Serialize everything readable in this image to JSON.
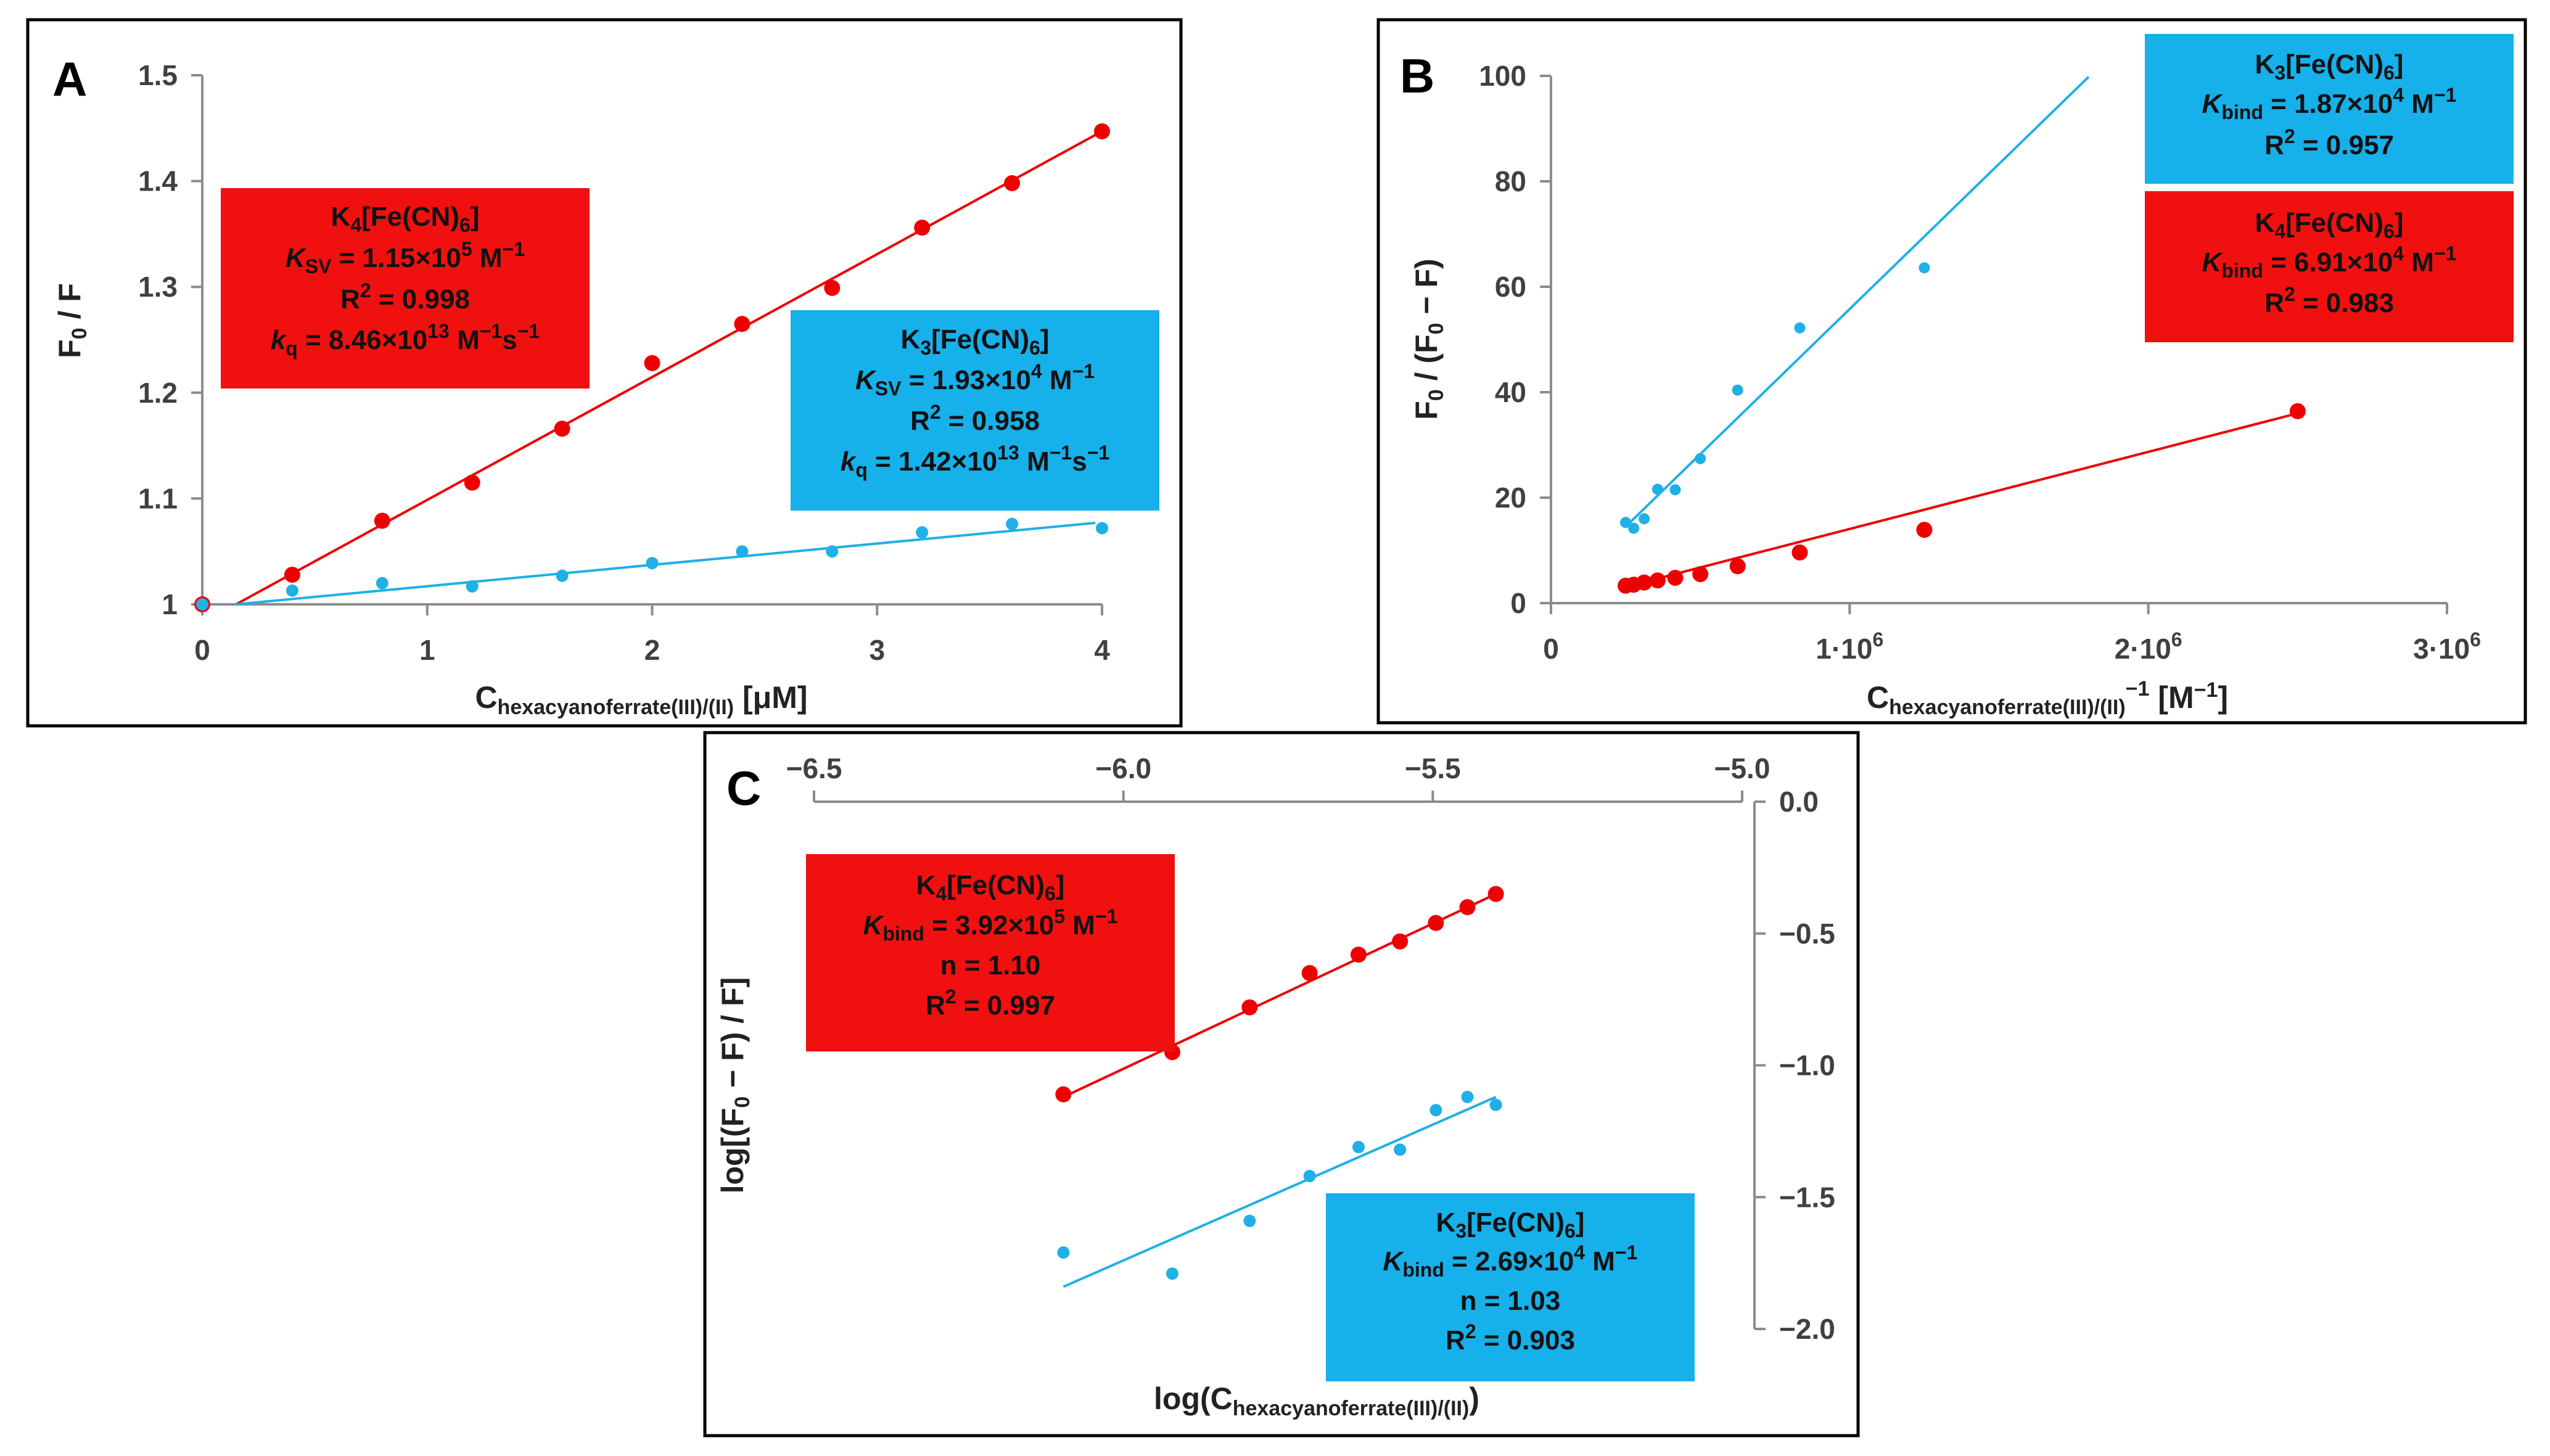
{
  "colors": {
    "red": "#ef0000",
    "blue": "#1fb0e6",
    "red_box": "#f01010",
    "blue_box": "#16b0ea"
  },
  "chart_data": [
    {
      "panel": "A",
      "type": "scatter",
      "xlabel_main": "C",
      "xlabel_sub": "hexacyanoferrate(III)/(II)",
      "xlabel_unit": " [μM]",
      "ylabel_main": "F",
      "ylabel_sub": "0",
      "ylabel_rest": " / F",
      "xlim": [
        0,
        4
      ],
      "ylim": [
        1,
        1.5
      ],
      "xticks": [
        "0",
        "1",
        "2",
        "3",
        "4"
      ],
      "yticks": [
        "1",
        "1.1",
        "1.2",
        "1.3",
        "1.4",
        "1.5"
      ],
      "series": [
        {
          "name": "K4[Fe(CN)6]",
          "color": "red",
          "x": [
            0,
            0.4,
            0.8,
            1.2,
            1.6,
            2.0,
            2.4,
            2.8,
            3.2,
            3.6,
            4.0
          ],
          "y": [
            1.0,
            1.028,
            1.079,
            1.115,
            1.166,
            1.228,
            1.265,
            1.299,
            1.356,
            1.398,
            1.447
          ],
          "fit": [
            [
              0.15,
              1.0
            ],
            [
              4.0,
              1.447
            ]
          ]
        },
        {
          "name": "K3[Fe(CN)6]",
          "color": "blue",
          "x": [
            0,
            0.4,
            0.8,
            1.2,
            1.6,
            2.0,
            2.4,
            2.8,
            3.2,
            3.6,
            4.0
          ],
          "y": [
            1.0,
            1.013,
            1.02,
            1.017,
            1.027,
            1.039,
            1.05,
            1.05,
            1.068,
            1.076,
            1.072
          ],
          "fit": [
            [
              0.15,
              1.0
            ],
            [
              3.97,
              1.077
            ]
          ]
        }
      ],
      "boxes": [
        {
          "color": "red",
          "title": "K",
          "title_sub": "4",
          "title_rest": "[Fe(CN)",
          "title_sub2": "6",
          "title_end": "]",
          "l2_k": "K",
          "l2_ksub": "SV",
          "l2_val": " = 1.15×10",
          "l2_sup": "5",
          "l2_unit": " M",
          "l2_unitsup": "−1",
          "l3_pre": "R",
          "l3_sup": "2",
          "l3_val": " = 0.998",
          "l4_k": "k",
          "l4_ksub": "q",
          "l4_val": " = 8.46×10",
          "l4_sup": "13",
          "l4_unit": " M",
          "l4_unitsup": "−1",
          "l4_unit2": "s",
          "l4_unitsup2": "−1"
        },
        {
          "color": "blue",
          "title": "K",
          "title_sub": "3",
          "title_rest": "[Fe(CN)",
          "title_sub2": "6",
          "title_end": "]",
          "l2_k": "K",
          "l2_ksub": "SV",
          "l2_val": " = 1.93×10",
          "l2_sup": "4",
          "l2_unit": " M",
          "l2_unitsup": "−1",
          "l3_pre": "R",
          "l3_sup": "2",
          "l3_val": " = 0.958",
          "l4_k": "k",
          "l4_ksub": "q",
          "l4_val": " = 1.42×10",
          "l4_sup": "13",
          "l4_unit": " M",
          "l4_unitsup": "−1",
          "l4_unit2": "s",
          "l4_unitsup2": "−1"
        }
      ]
    },
    {
      "panel": "B",
      "type": "scatter",
      "xlabel_main": "C",
      "xlabel_sub": "hexacyanoferrate(III)/(II)",
      "xlabel_sup": "−1",
      "xlabel_unit": " [M",
      "xlabel_unitsup": "−1",
      "xlabel_end": "]",
      "ylabel_main": "F",
      "ylabel_sub": "0",
      "ylabel_rest": " / (F",
      "ylabel_sub2": "0",
      "ylabel_end": " − F)",
      "xlim": [
        0,
        3000000
      ],
      "ylim": [
        0,
        100
      ],
      "xticks": [
        "0",
        "1·10",
        "2·10",
        "3·10"
      ],
      "xticks_sup": [
        "",
        "6",
        "6",
        "6"
      ],
      "yticks": [
        "0",
        "20",
        "40",
        "60",
        "80",
        "100"
      ],
      "series": [
        {
          "name": "K3[Fe(CN)6]",
          "color": "blue",
          "x": [
            250000,
            277000,
            312000,
            357000,
            416000,
            500000,
            625000,
            833000,
            1250000
          ],
          "y": [
            15.3,
            14.2,
            16.0,
            21.6,
            21.5,
            27.4,
            40.4,
            52.2,
            63.6
          ],
          "fit": [
            [
              250000,
              14.5
            ],
            [
              1800000,
              99.8
            ]
          ]
        },
        {
          "name": "K4[Fe(CN)6]",
          "color": "red",
          "x": [
            250000,
            277000,
            312000,
            357000,
            416000,
            500000,
            625000,
            833000,
            1250000,
            2500000
          ],
          "y": [
            3.3,
            3.5,
            3.9,
            4.3,
            4.8,
            5.5,
            7.0,
            9.6,
            13.9,
            36.4
          ],
          "fit": [
            [
              250000,
              3.1
            ],
            [
              2500000,
              36.0
            ]
          ]
        }
      ],
      "boxes": [
        {
          "color": "blue",
          "title": "K",
          "title_sub": "3",
          "title_rest": "[Fe(CN)",
          "title_sub2": "6",
          "title_end": "]",
          "l2_k": "K",
          "l2_ksub": "bind",
          "l2_val": " = 1.87×10",
          "l2_sup": "4",
          "l2_unit": " M",
          "l2_unitsup": "−1",
          "l3_pre": "R",
          "l3_sup": "2",
          "l3_val": " = 0.957"
        },
        {
          "color": "red",
          "title": "K",
          "title_sub": "4",
          "title_rest": "[Fe(CN)",
          "title_sub2": "6",
          "title_end": "]",
          "l2_k": "K",
          "l2_ksub": "bind",
          "l2_val": " = 6.91×10",
          "l2_sup": "4",
          "l2_unit": " M",
          "l2_unitsup": "−1",
          "l3_pre": "R",
          "l3_sup": "2",
          "l3_val": " = 0.983"
        }
      ]
    },
    {
      "panel": "C",
      "type": "scatter",
      "xlabel_main": "log(C",
      "xlabel_sub": "hexacyanoferrate(III)/(II)",
      "xlabel_end": ")",
      "ylabel_main": "log[(F",
      "ylabel_sub": "0",
      "ylabel_rest": " − F) / F]",
      "xlim": [
        -6.5,
        -5.0
      ],
      "ylim": [
        -2.0,
        0.0
      ],
      "xticks": [
        "−6.5",
        "−6.0",
        "−5.5",
        "−5.0"
      ],
      "yticks": [
        "0.0",
        "−0.5",
        "−1.0",
        "−1.5",
        "−2.0"
      ],
      "series": [
        {
          "name": "K4[Fe(CN)6]",
          "color": "red",
          "x": [
            -6.097,
            -5.921,
            -5.796,
            -5.699,
            -5.62,
            -5.553,
            -5.495,
            -5.444,
            -5.398
          ],
          "y": [
            -1.11,
            -0.95,
            -0.78,
            -0.65,
            -0.58,
            -0.53,
            -0.46,
            -0.4,
            -0.35
          ],
          "fit": [
            [
              -6.097,
              -1.12
            ],
            [
              -5.398,
              -0.35
            ]
          ]
        },
        {
          "name": "K3[Fe(CN)6]",
          "color": "blue",
          "x": [
            -6.097,
            -5.921,
            -5.796,
            -5.699,
            -5.62,
            -5.553,
            -5.495,
            -5.444,
            -5.398
          ],
          "y": [
            -1.71,
            -1.79,
            -1.59,
            -1.42,
            -1.31,
            -1.32,
            -1.17,
            -1.12,
            -1.15
          ],
          "fit": [
            [
              -6.097,
              -1.84
            ],
            [
              -5.398,
              -1.12
            ]
          ]
        }
      ],
      "boxes": [
        {
          "color": "red",
          "title": "K",
          "title_sub": "4",
          "title_rest": "[Fe(CN)",
          "title_sub2": "6",
          "title_end": "]",
          "l2_k": "K",
          "l2_ksub": "bind",
          "l2_val": " = 3.92×10",
          "l2_sup": "5",
          "l2_unit": " M",
          "l2_unitsup": "−1",
          "l3_text": "n = 1.10",
          "l4_pre": "R",
          "l4_sup": "2",
          "l4_val": " = 0.997"
        },
        {
          "color": "blue",
          "title": "K",
          "title_sub": "3",
          "title_rest": "[Fe(CN)",
          "title_sub2": "6",
          "title_end": "]",
          "l2_k": "K",
          "l2_ksub": "bind",
          "l2_val": " = 2.69×10",
          "l2_sup": "4",
          "l2_unit": " M",
          "l2_unitsup": "−1",
          "l3_text": "n = 1.03",
          "l4_pre": "R",
          "l4_sup": "2",
          "l4_val": " = 0.903"
        }
      ]
    }
  ]
}
